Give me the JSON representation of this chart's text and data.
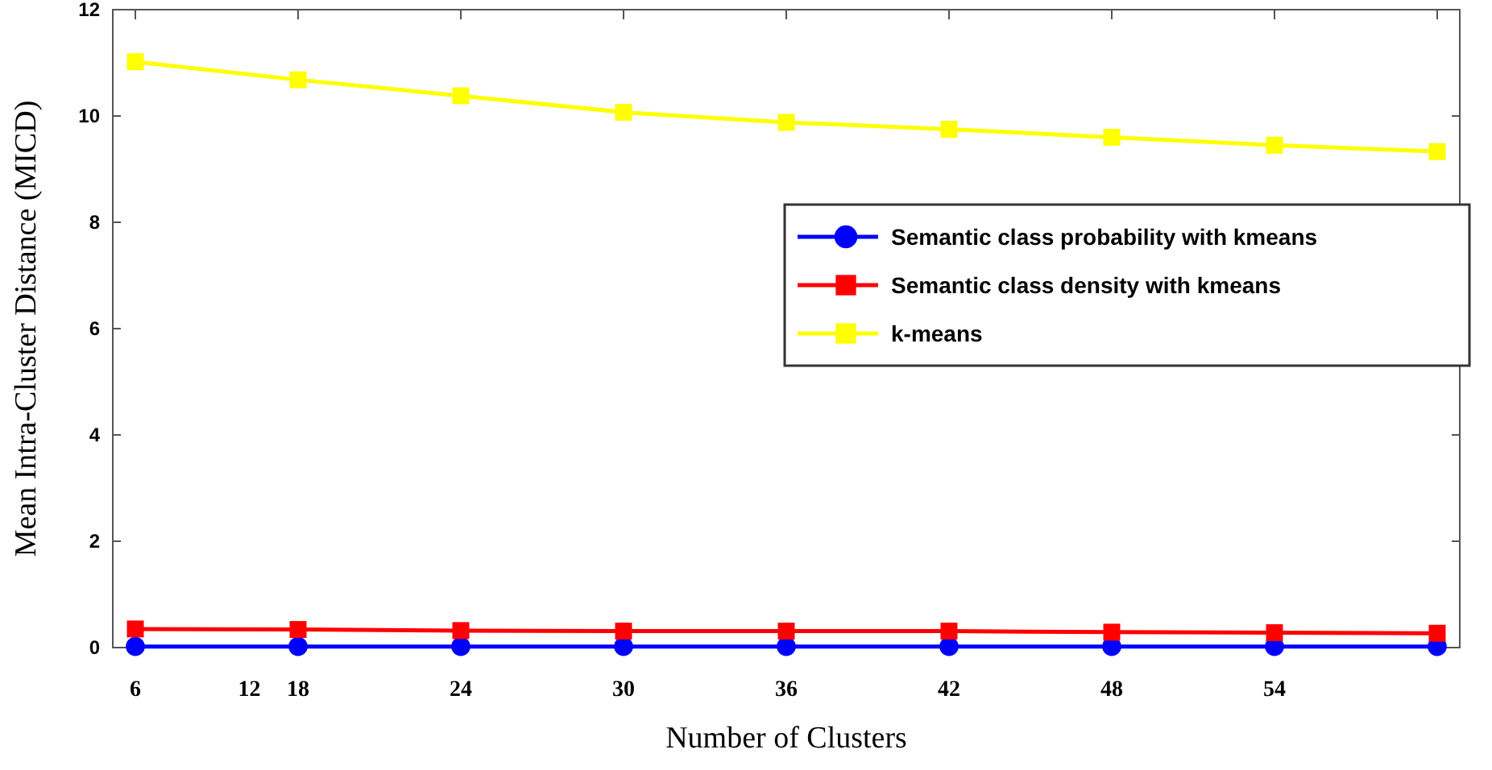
{
  "chart_data": {
    "type": "line",
    "xlabel": "Number of Clusters",
    "ylabel": "Mean Intra-Cluster Distance (MICD)",
    "categories": [
      "6",
      "18",
      "24",
      "30",
      "36",
      "42",
      "48",
      "54",
      null
    ],
    "annotations": [
      "12"
    ],
    "series": [
      {
        "name": "Semantic class probability with kmeans",
        "color": "#0000ff",
        "marker": "circle",
        "values": [
          0.02,
          0.02,
          0.02,
          0.02,
          0.02,
          0.02,
          0.02,
          0.02,
          0.02
        ]
      },
      {
        "name": "Semantic class density with kmeans",
        "color": "#ff0000",
        "marker": "square",
        "values": [
          0.35,
          0.34,
          0.32,
          0.31,
          0.31,
          0.31,
          0.29,
          0.28,
          0.27
        ]
      },
      {
        "name": "k-means",
        "color": "#ffff00",
        "marker": "square",
        "values": [
          11.02,
          10.68,
          10.38,
          10.07,
          9.88,
          9.75,
          9.6,
          9.45,
          9.33
        ]
      }
    ],
    "ylim": [
      0,
      12
    ],
    "yticks": [
      0,
      2,
      4,
      6,
      8,
      10,
      12
    ],
    "grid": false,
    "legend": "right",
    "line_style": "solid"
  }
}
